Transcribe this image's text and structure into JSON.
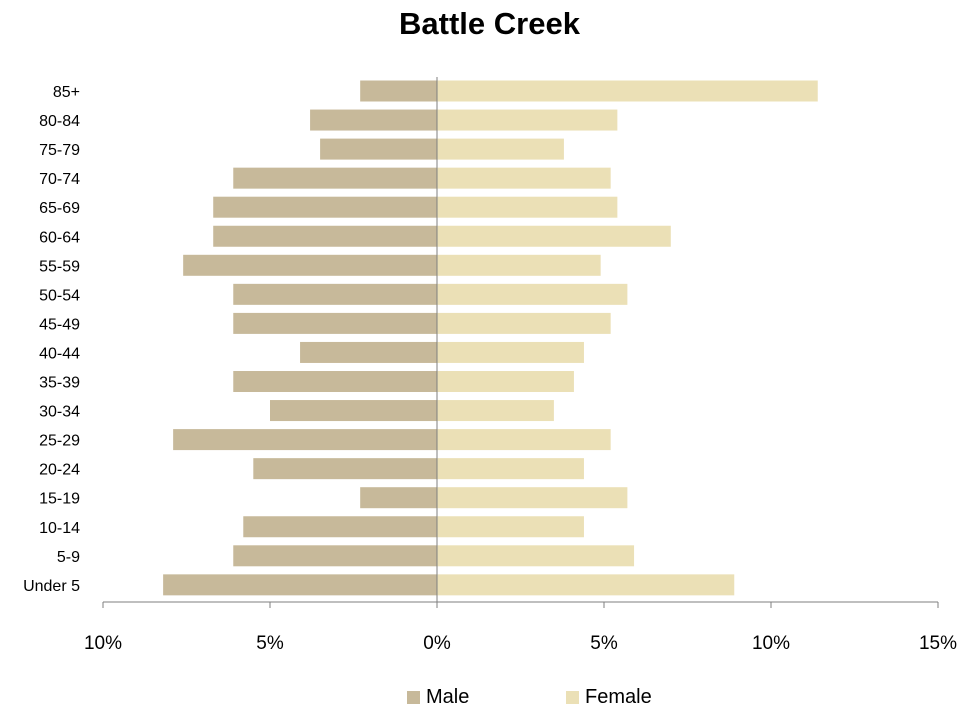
{
  "chart_data": {
    "type": "bar",
    "orientation": "horizontal",
    "title": "Battle Creek",
    "categories": [
      "85+",
      "80-84",
      "75-79",
      "70-74",
      "65-69",
      "60-64",
      "55-59",
      "50-54",
      "45-49",
      "40-44",
      "35-39",
      "30-34",
      "25-29",
      "20-24",
      "15-19",
      "10-14",
      "5-9",
      "Under 5"
    ],
    "series": [
      {
        "name": "Male",
        "color": "#c7b99a",
        "values": [
          2.3,
          3.8,
          3.5,
          6.1,
          6.7,
          6.7,
          7.6,
          6.1,
          6.1,
          4.1,
          6.1,
          5.0,
          7.9,
          5.5,
          2.3,
          5.8,
          6.1,
          8.2
        ]
      },
      {
        "name": "Female",
        "color": "#ebe0b6",
        "values": [
          11.4,
          5.4,
          3.8,
          5.2,
          5.4,
          7.0,
          4.9,
          5.7,
          5.2,
          4.4,
          4.1,
          3.5,
          5.2,
          4.4,
          5.7,
          4.4,
          5.9,
          8.9
        ]
      }
    ],
    "xlim": [
      -10,
      15
    ],
    "xticks": [
      -10,
      -5,
      0,
      5,
      10,
      15
    ],
    "xtick_labels": [
      "10%",
      "5%",
      "0%",
      "5%",
      "10%",
      "15%"
    ],
    "legend_position": "bottom",
    "grid": false
  }
}
